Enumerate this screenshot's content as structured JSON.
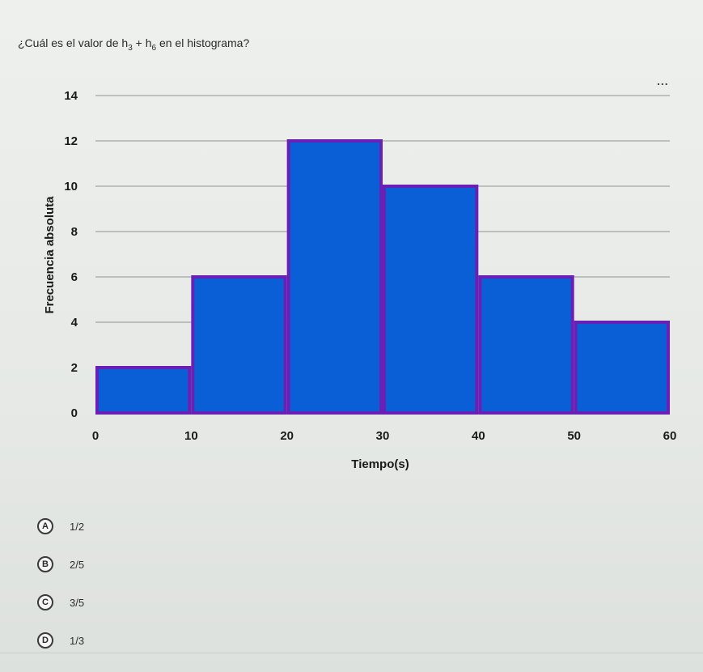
{
  "question": {
    "prefix": "¿Cuál es el valor de h",
    "sub1": "3",
    "plus": " + h",
    "sub2": "6",
    "suffix": " en el histograma?"
  },
  "menu_label": "...",
  "chart_data": {
    "type": "bar",
    "bins": [
      [
        0,
        10
      ],
      [
        10,
        20
      ],
      [
        20,
        30
      ],
      [
        30,
        40
      ],
      [
        40,
        50
      ],
      [
        50,
        60
      ]
    ],
    "values": [
      2,
      6,
      12,
      10,
      6,
      4
    ],
    "xlabel": "Tiempo(s)",
    "ylabel": "Frecuencia absoluta",
    "x_ticks": [
      0,
      10,
      20,
      30,
      40,
      50,
      60
    ],
    "y_ticks": [
      0,
      2,
      4,
      6,
      8,
      10,
      12,
      14
    ],
    "xlim": [
      0,
      60
    ],
    "ylim": [
      0,
      14
    ],
    "grid": "horizontal",
    "bar_color": "#0a5fd6",
    "edge_color": "#6a1fb5"
  },
  "options": [
    {
      "letter": "A",
      "text": "1/2"
    },
    {
      "letter": "B",
      "text": "2/5"
    },
    {
      "letter": "C",
      "text": "3/5"
    },
    {
      "letter": "D",
      "text": "1/3"
    }
  ]
}
